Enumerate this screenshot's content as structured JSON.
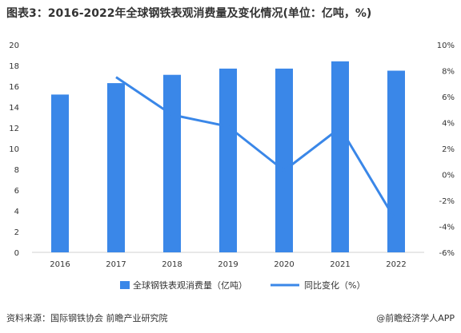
{
  "title": "图表3：2016-2022年全球钢铁表观消费量及变化情况(单位：亿吨，%)",
  "source": "资料来源：国际钢铁协会 前瞻产业研究院",
  "brand": "@前瞻经济学人APP",
  "colors": {
    "bar": "#3a87e8",
    "line": "#3a87e8",
    "grid": "#e6e6e6",
    "text": "#333333"
  },
  "chart_data": {
    "type": "bar+line",
    "categories": [
      "2016",
      "2017",
      "2018",
      "2019",
      "2020",
      "2021",
      "2022"
    ],
    "series": [
      {
        "name": "全球钢铁表观消费量（亿吨）",
        "type": "bar",
        "axis": "left",
        "values": [
          15.2,
          16.3,
          17.1,
          17.7,
          17.7,
          18.4,
          17.5
        ]
      },
      {
        "name": "同比变化（%）",
        "type": "line",
        "axis": "right",
        "values": [
          null,
          7.5,
          4.6,
          3.7,
          0.3,
          3.6,
          -3.6
        ]
      }
    ],
    "y_left": {
      "min": 0,
      "max": 20,
      "step": 2,
      "ticks": [
        "0",
        "2",
        "4",
        "6",
        "8",
        "10",
        "12",
        "14",
        "16",
        "18",
        "20"
      ]
    },
    "y_right": {
      "min": -6,
      "max": 10,
      "step": 2,
      "ticks": [
        "-6%",
        "-4%",
        "-2%",
        "0%",
        "2%",
        "4%",
        "6%",
        "8%",
        "10%"
      ]
    },
    "legend": {
      "position": "bottom"
    },
    "grid": false
  }
}
